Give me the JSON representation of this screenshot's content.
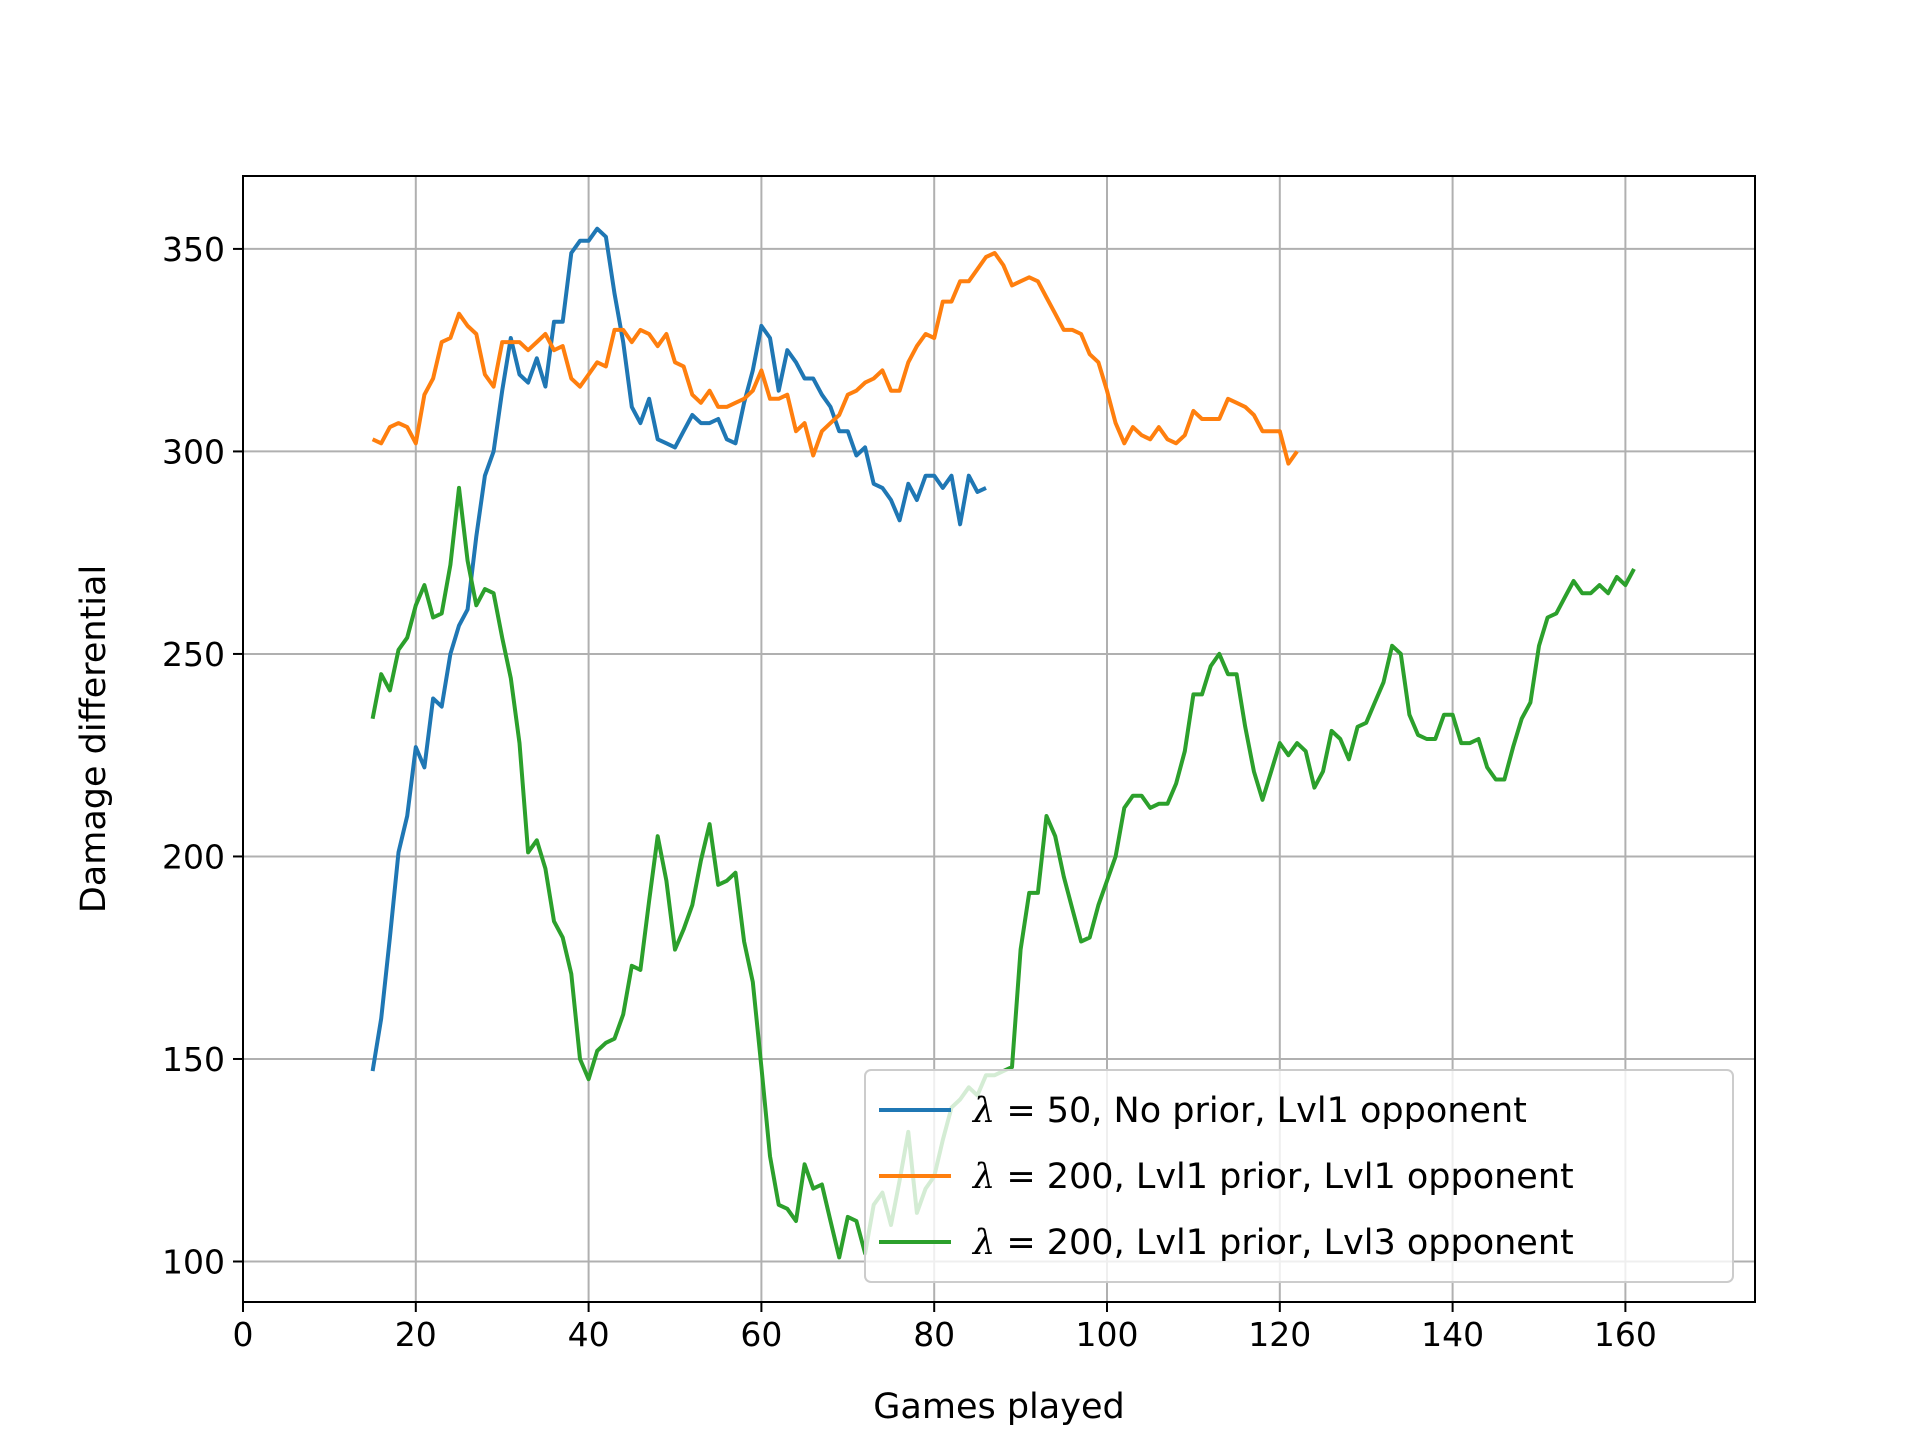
{
  "chart_data": {
    "type": "line",
    "xlabel": "Games played",
    "ylabel": "Damage differential",
    "xlim": [
      0,
      175
    ],
    "ylim": [
      90,
      368
    ],
    "xticks": [
      0,
      20,
      40,
      60,
      80,
      100,
      120,
      140,
      160
    ],
    "yticks": [
      100,
      150,
      200,
      250,
      300,
      350
    ],
    "grid": true,
    "legend_position": "lower-right",
    "series": [
      {
        "name": "λ = 50, No prior, Lvl1 opponent",
        "legend": {
          "lambda": "λ",
          "rest": " = 50, No prior, Lvl1 opponent"
        },
        "color": "#1f77b4",
        "x": [
          15,
          16,
          17,
          18,
          19,
          20,
          21,
          22,
          23,
          24,
          25,
          26,
          27,
          28,
          29,
          30,
          31,
          32,
          33,
          34,
          35,
          36,
          37,
          38,
          39,
          40,
          41,
          42,
          43,
          44,
          45,
          46,
          47,
          48,
          49,
          50,
          51,
          52,
          53,
          54,
          55,
          56,
          57,
          58,
          59,
          60,
          61,
          62,
          63,
          64,
          65,
          66,
          67,
          68,
          69,
          70,
          71,
          72,
          73,
          74,
          75,
          76,
          77,
          78,
          79,
          80,
          81,
          82,
          83,
          84,
          85,
          86
        ],
        "y": [
          147,
          160,
          180,
          201,
          210,
          227,
          222,
          239,
          237,
          250,
          257,
          261,
          279,
          294,
          300,
          315,
          328,
          319,
          317,
          323,
          316,
          332,
          332,
          349,
          352,
          352,
          355,
          353,
          339,
          327,
          311,
          307,
          313,
          303,
          302,
          301,
          305,
          309,
          307,
          307,
          308,
          303,
          302,
          312,
          320,
          331,
          328,
          315,
          325,
          322,
          318,
          318,
          314,
          311,
          305,
          305,
          299,
          301,
          292,
          291,
          288,
          283,
          292,
          288,
          294,
          294,
          291,
          294,
          282,
          294,
          290,
          291
        ]
      },
      {
        "name": "λ = 200, Lvl1 prior, Lvl1 opponent",
        "legend": {
          "lambda": "λ",
          "rest": " = 200, Lvl1 prior, Lvl1 opponent"
        },
        "color": "#ff7f0e",
        "x": [
          15,
          16,
          17,
          18,
          19,
          20,
          21,
          22,
          23,
          24,
          25,
          26,
          27,
          28,
          29,
          30,
          31,
          32,
          33,
          34,
          35,
          36,
          37,
          38,
          39,
          40,
          41,
          42,
          43,
          44,
          45,
          46,
          47,
          48,
          49,
          50,
          51,
          52,
          53,
          54,
          55,
          56,
          57,
          58,
          59,
          60,
          61,
          62,
          63,
          64,
          65,
          66,
          67,
          68,
          69,
          70,
          71,
          72,
          73,
          74,
          75,
          76,
          77,
          78,
          79,
          80,
          81,
          82,
          83,
          84,
          85,
          86,
          87,
          88,
          89,
          90,
          91,
          92,
          93,
          94,
          95,
          96,
          97,
          98,
          99,
          100,
          101,
          102,
          103,
          104,
          105,
          106,
          107,
          108,
          109,
          110,
          111,
          112,
          113,
          114,
          115,
          116,
          117,
          118,
          119,
          120,
          121,
          122
        ],
        "y": [
          303,
          302,
          306,
          307,
          306,
          302,
          314,
          318,
          327,
          328,
          334,
          331,
          329,
          319,
          316,
          327,
          327,
          327,
          325,
          327,
          329,
          325,
          326,
          318,
          316,
          319,
          322,
          321,
          330,
          330,
          327,
          330,
          329,
          326,
          329,
          322,
          321,
          314,
          312,
          315,
          311,
          311,
          312,
          313,
          315,
          320,
          313,
          313,
          314,
          305,
          307,
          299,
          305,
          307,
          309,
          314,
          315,
          317,
          318,
          320,
          315,
          315,
          322,
          326,
          329,
          328,
          337,
          337,
          342,
          342,
          345,
          348,
          349,
          346,
          341,
          342,
          343,
          342,
          338,
          334,
          330,
          330,
          329,
          324,
          322,
          315,
          307,
          302,
          306,
          304,
          303,
          306,
          303,
          302,
          304,
          310,
          308,
          308,
          308,
          313,
          312,
          311,
          309,
          305,
          305,
          305,
          297,
          300
        ]
      },
      {
        "name": "λ = 200, Lvl1 prior, Lvl3 opponent",
        "legend": {
          "lambda": "λ",
          "rest": " = 200, Lvl1 prior, Lvl3 opponent"
        },
        "color": "#2ca02c",
        "x": [
          15,
          16,
          17,
          18,
          19,
          20,
          21,
          22,
          23,
          24,
          25,
          26,
          27,
          28,
          29,
          30,
          31,
          32,
          33,
          34,
          35,
          36,
          37,
          38,
          39,
          40,
          41,
          42,
          43,
          44,
          45,
          46,
          47,
          48,
          49,
          50,
          51,
          52,
          53,
          54,
          55,
          56,
          57,
          58,
          59,
          60,
          61,
          62,
          63,
          64,
          65,
          66,
          67,
          68,
          69,
          70,
          71,
          72,
          73,
          74,
          75,
          76,
          77,
          78,
          79,
          80,
          81,
          82,
          83,
          84,
          85,
          86,
          87,
          88,
          89,
          90,
          91,
          92,
          93,
          94,
          95,
          96,
          97,
          98,
          99,
          100,
          101,
          102,
          103,
          104,
          105,
          106,
          107,
          108,
          109,
          110,
          111,
          112,
          113,
          114,
          115,
          116,
          117,
          118,
          119,
          120,
          121,
          122,
          123,
          124,
          125,
          126,
          127,
          128,
          129,
          130,
          131,
          132,
          133,
          134,
          135,
          136,
          137,
          138,
          139,
          140,
          141,
          142,
          143,
          144,
          145,
          146,
          147,
          148,
          149,
          150,
          151,
          152,
          153,
          154,
          155,
          156,
          157,
          158,
          159,
          160,
          161
        ],
        "y": [
          234,
          245,
          241,
          251,
          254,
          262,
          267,
          259,
          260,
          272,
          291,
          273,
          262,
          266,
          265,
          254,
          244,
          228,
          201,
          204,
          197,
          184,
          180,
          171,
          150,
          145,
          152,
          154,
          155,
          161,
          173,
          172,
          189,
          205,
          194,
          177,
          182,
          188,
          199,
          208,
          193,
          194,
          196,
          179,
          169,
          148,
          126,
          114,
          113,
          110,
          124,
          118,
          119,
          110,
          101,
          111,
          110,
          102,
          114,
          117,
          109,
          120,
          132,
          112,
          118,
          121,
          130,
          138,
          140,
          143,
          141,
          146,
          146,
          147,
          148,
          177,
          191,
          191,
          210,
          205,
          195,
          187,
          179,
          180,
          188,
          194,
          200,
          212,
          215,
          215,
          212,
          213,
          213,
          218,
          226,
          240,
          240,
          247,
          250,
          245,
          245,
          232,
          221,
          214,
          221,
          228,
          225,
          228,
          226,
          217,
          221,
          231,
          229,
          224,
          232,
          233,
          238,
          243,
          252,
          250,
          235,
          230,
          229,
          229,
          235,
          235,
          228,
          228,
          229,
          222,
          219,
          219,
          227,
          234,
          238,
          252,
          259,
          260,
          264,
          268,
          265,
          265,
          267,
          265,
          269,
          267,
          271
        ]
      }
    ]
  }
}
